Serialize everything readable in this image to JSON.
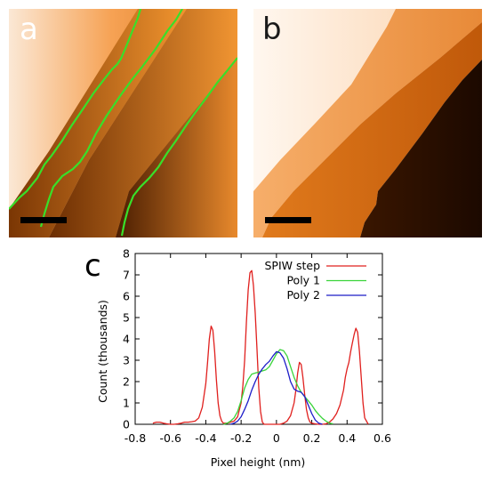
{
  "panels": {
    "a": {
      "label": "a",
      "outline_color": "#38e02a"
    },
    "b": {
      "label": "b"
    },
    "c": {
      "label": "c"
    }
  },
  "image_colors": {
    "dark": "#2a1200",
    "mid": "#e07a1c",
    "light": "#f6a254",
    "pale": "#fbe8d5"
  },
  "chart_data": {
    "type": "line",
    "xlabel": "Pixel height (nm)",
    "ylabel": "Count (thousands)",
    "xlim": [
      -0.8,
      0.6
    ],
    "ylim": [
      0,
      8
    ],
    "xticks": [
      -0.8,
      -0.6,
      -0.4,
      -0.2,
      0,
      0.2,
      0.4,
      0.6
    ],
    "xtick_labels": [
      "-0.8",
      "-0.6",
      "-0.4",
      "-0.2",
      "0",
      "0.2",
      "0.4",
      "0.6"
    ],
    "yticks": [
      0,
      1,
      2,
      3,
      4,
      5,
      6,
      7,
      8
    ],
    "ytick_labels": [
      "0",
      "1",
      "2",
      "3",
      "4",
      "5",
      "6",
      "7",
      "8"
    ],
    "grid": false,
    "legend_position": "top-right",
    "series": [
      {
        "name": "SPIW step",
        "color": "#e0201e",
        "x": [
          -0.7,
          -0.68,
          -0.66,
          -0.64,
          -0.62,
          -0.6,
          -0.58,
          -0.56,
          -0.54,
          -0.52,
          -0.5,
          -0.48,
          -0.46,
          -0.44,
          -0.42,
          -0.4,
          -0.39,
          -0.38,
          -0.37,
          -0.36,
          -0.35,
          -0.34,
          -0.33,
          -0.32,
          -0.31,
          -0.3,
          -0.28,
          -0.26,
          -0.24,
          -0.22,
          -0.2,
          -0.19,
          -0.18,
          -0.17,
          -0.16,
          -0.15,
          -0.14,
          -0.13,
          -0.12,
          -0.11,
          -0.1,
          -0.09,
          -0.08,
          -0.07,
          -0.06,
          -0.04,
          -0.02,
          0,
          0.02,
          0.04,
          0.06,
          0.08,
          0.1,
          0.11,
          0.12,
          0.13,
          0.14,
          0.15,
          0.16,
          0.17,
          0.18,
          0.19,
          0.2,
          0.22,
          0.24,
          0.26,
          0.28,
          0.3,
          0.32,
          0.34,
          0.36,
          0.38,
          0.39,
          0.4,
          0.41,
          0.42,
          0.43,
          0.44,
          0.45,
          0.46,
          0.47,
          0.48,
          0.49,
          0.5,
          0.52
        ],
        "y": [
          0.05,
          0.1,
          0.1,
          0.05,
          0.02,
          0,
          0,
          0.02,
          0.05,
          0.1,
          0.1,
          0.12,
          0.15,
          0.3,
          0.8,
          1.9,
          2.9,
          4.0,
          4.6,
          4.4,
          3.4,
          2.1,
          1.0,
          0.4,
          0.15,
          0.05,
          0.05,
          0.1,
          0.15,
          0.35,
          1.0,
          1.8,
          3.0,
          4.8,
          6.3,
          7.1,
          7.2,
          6.5,
          5.2,
          3.5,
          1.7,
          0.6,
          0.1,
          0,
          0,
          0,
          0,
          0,
          0,
          0.05,
          0.15,
          0.4,
          1.0,
          1.6,
          2.4,
          2.9,
          2.8,
          2.2,
          1.4,
          0.7,
          0.3,
          0.1,
          0.05,
          0.02,
          0,
          0,
          0.02,
          0.1,
          0.25,
          0.5,
          0.9,
          1.6,
          2.2,
          2.6,
          2.9,
          3.4,
          3.8,
          4.2,
          4.5,
          4.3,
          3.4,
          2.2,
          1.0,
          0.3,
          0
        ]
      },
      {
        "name": "Poly 1",
        "color": "#3ad43a",
        "x": [
          -0.3,
          -0.28,
          -0.26,
          -0.24,
          -0.22,
          -0.2,
          -0.18,
          -0.16,
          -0.14,
          -0.12,
          -0.1,
          -0.08,
          -0.06,
          -0.04,
          -0.02,
          0,
          0.02,
          0.04,
          0.06,
          0.08,
          0.1,
          0.12,
          0.14,
          0.16,
          0.18,
          0.2,
          0.22,
          0.24,
          0.26,
          0.28,
          0.3,
          0.32
        ],
        "y": [
          0,
          0.05,
          0.15,
          0.3,
          0.6,
          1.1,
          1.7,
          2.1,
          2.35,
          2.4,
          2.45,
          2.5,
          2.55,
          2.7,
          3.0,
          3.3,
          3.5,
          3.45,
          3.2,
          2.7,
          2.2,
          1.8,
          1.5,
          1.3,
          1.1,
          0.9,
          0.65,
          0.45,
          0.28,
          0.15,
          0.06,
          0.02
        ]
      },
      {
        "name": "Poly 2",
        "color": "#1c1cc8",
        "x": [
          -0.26,
          -0.24,
          -0.22,
          -0.2,
          -0.18,
          -0.16,
          -0.14,
          -0.12,
          -0.1,
          -0.08,
          -0.06,
          -0.04,
          -0.02,
          0,
          0.02,
          0.04,
          0.06,
          0.08,
          0.1,
          0.12,
          0.14,
          0.16,
          0.18,
          0.2,
          0.22,
          0.24,
          0.26
        ],
        "y": [
          0,
          0.05,
          0.15,
          0.35,
          0.7,
          1.1,
          1.6,
          2.0,
          2.35,
          2.6,
          2.8,
          2.95,
          3.2,
          3.4,
          3.35,
          3.1,
          2.6,
          2.0,
          1.65,
          1.55,
          1.5,
          1.3,
          0.9,
          0.5,
          0.2,
          0.05,
          0
        ]
      }
    ]
  }
}
